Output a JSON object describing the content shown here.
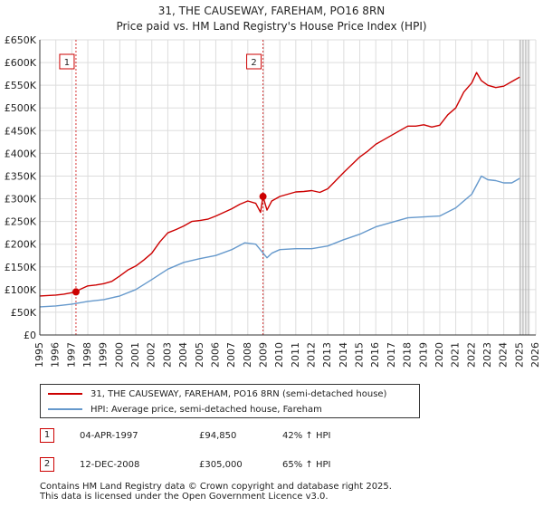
{
  "title": {
    "line1": "31, THE CAUSEWAY, FAREHAM, PO16 8RN",
    "line2": "Price paid vs. HM Land Registry's House Price Index (HPI)"
  },
  "legend": {
    "property_label": "31, THE CAUSEWAY, FAREHAM, PO16 8RN (semi-detached house)",
    "hpi_label": "HPI: Average price, semi-detached house, Fareham"
  },
  "sales": [
    {
      "badge": "1",
      "date": "04-APR-1997",
      "price": "£94,850",
      "hpi_change": "42% ↑ HPI"
    },
    {
      "badge": "2",
      "date": "12-DEC-2008",
      "price": "£305,000",
      "hpi_change": "65% ↑ HPI"
    }
  ],
  "footer": {
    "line1": "Contains HM Land Registry data © Crown copyright and database right 2025.",
    "line2": "This data is licensed under the Open Government Licence v3.0."
  },
  "chart_data": {
    "type": "line",
    "xlim": [
      1995,
      2026
    ],
    "ylim": [
      0,
      650000
    ],
    "x_ticks": [
      1995,
      1996,
      1997,
      1998,
      1999,
      2000,
      2001,
      2002,
      2003,
      2004,
      2005,
      2006,
      2007,
      2008,
      2009,
      2010,
      2011,
      2012,
      2013,
      2014,
      2015,
      2016,
      2017,
      2018,
      2019,
      2020,
      2021,
      2022,
      2023,
      2024,
      2025,
      2026
    ],
    "y_ticks": [
      {
        "value": 0,
        "label": "£0"
      },
      {
        "value": 50000,
        "label": "£50K"
      },
      {
        "value": 100000,
        "label": "£100K"
      },
      {
        "value": 150000,
        "label": "£150K"
      },
      {
        "value": 200000,
        "label": "£200K"
      },
      {
        "value": 250000,
        "label": "£250K"
      },
      {
        "value": 300000,
        "label": "£300K"
      },
      {
        "value": 350000,
        "label": "£350K"
      },
      {
        "value": 400000,
        "label": "£400K"
      },
      {
        "value": 450000,
        "label": "£450K"
      },
      {
        "value": 500000,
        "label": "£500K"
      },
      {
        "value": 550000,
        "label": "£550K"
      },
      {
        "value": 600000,
        "label": "£600K"
      },
      {
        "value": 650000,
        "label": "£650K"
      }
    ],
    "grid": true,
    "projection_start": 2025.0,
    "series": [
      {
        "name": "31, THE CAUSEWAY, FAREHAM, PO16 8RN (semi-detached house)",
        "color": "#cc0000",
        "x": [
          1995.0,
          1996.0,
          1996.5,
          1997.26,
          1997.5,
          1998.0,
          1998.5,
          1999.0,
          1999.5,
          2000.0,
          2000.5,
          2001.0,
          2001.5,
          2002.0,
          2002.5,
          2003.0,
          2003.5,
          2004.0,
          2004.5,
          2005.0,
          2005.5,
          2006.0,
          2006.5,
          2007.0,
          2007.5,
          2008.0,
          2008.5,
          2008.8,
          2008.95,
          2009.2,
          2009.5,
          2010.0,
          2010.5,
          2011.0,
          2011.5,
          2012.0,
          2012.5,
          2013.0,
          2013.5,
          2014.0,
          2014.5,
          2015.0,
          2015.5,
          2016.0,
          2016.5,
          2017.0,
          2017.5,
          2018.0,
          2018.5,
          2019.0,
          2019.5,
          2020.0,
          2020.5,
          2021.0,
          2021.5,
          2022.0,
          2022.3,
          2022.6,
          2023.0,
          2023.5,
          2024.0,
          2024.5,
          2025.0
        ],
        "values": [
          86000,
          88000,
          90000,
          94850,
          100000,
          108000,
          110000,
          113000,
          118000,
          130000,
          143000,
          152000,
          165000,
          180000,
          205000,
          225000,
          232000,
          240000,
          250000,
          252000,
          255000,
          262000,
          270000,
          278000,
          288000,
          295000,
          290000,
          270000,
          305000,
          275000,
          295000,
          305000,
          310000,
          315000,
          316000,
          318000,
          314000,
          322000,
          340000,
          358000,
          375000,
          392000,
          405000,
          420000,
          430000,
          440000,
          450000,
          460000,
          460000,
          463000,
          458000,
          462000,
          485000,
          500000,
          535000,
          555000,
          578000,
          560000,
          550000,
          545000,
          548000,
          558000,
          568000
        ]
      },
      {
        "name": "HPI: Average price, semi-detached house, Fareham",
        "color": "#6699cc",
        "x": [
          1995.0,
          1996.0,
          1997.0,
          1998.0,
          1999.0,
          2000.0,
          2001.0,
          2002.0,
          2003.0,
          2004.0,
          2005.0,
          2006.0,
          2007.0,
          2007.8,
          2008.5,
          2009.2,
          2009.5,
          2010.0,
          2011.0,
          2012.0,
          2013.0,
          2014.0,
          2015.0,
          2016.0,
          2017.0,
          2018.0,
          2019.0,
          2020.0,
          2021.0,
          2022.0,
          2022.6,
          2023.0,
          2023.5,
          2024.0,
          2024.5,
          2025.0
        ],
        "values": [
          62000,
          64000,
          68000,
          74000,
          78000,
          86000,
          100000,
          122000,
          145000,
          160000,
          168000,
          175000,
          188000,
          203000,
          200000,
          170000,
          180000,
          188000,
          190000,
          190000,
          196000,
          210000,
          222000,
          238000,
          248000,
          258000,
          260000,
          262000,
          280000,
          310000,
          350000,
          342000,
          340000,
          335000,
          335000,
          345000
        ]
      }
    ],
    "sales_markers": [
      {
        "label": "1",
        "x": 1997.26,
        "value": 94850
      },
      {
        "label": "2",
        "x": 2008.95,
        "value": 305000
      }
    ]
  }
}
